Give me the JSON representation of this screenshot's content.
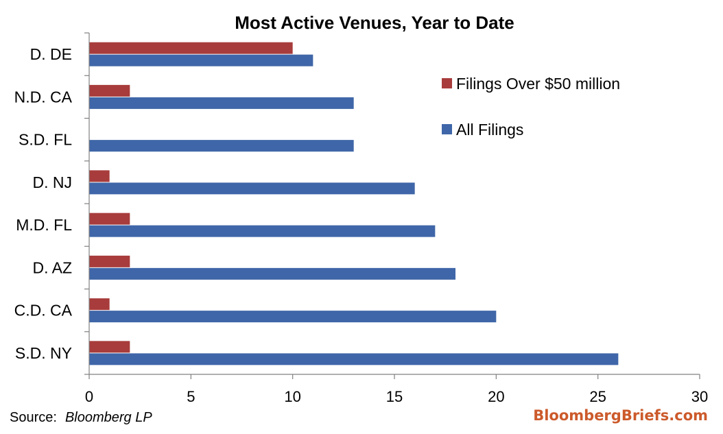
{
  "chart_data": {
    "type": "bar",
    "orientation": "horizontal",
    "title": "Most Active Venues, Year to Date",
    "categories": [
      "D. DE",
      "N.D. CA",
      "S.D. FL",
      "D. NJ",
      "M.D. FL",
      "D. AZ",
      "C.D. CA",
      "S.D. NY"
    ],
    "series": [
      {
        "name": "Filings Over $50 million",
        "color": "#a83c3c",
        "values": [
          10,
          2,
          0,
          1,
          2,
          2,
          1,
          2
        ]
      },
      {
        "name": "All Filings",
        "color": "#3f66a8",
        "values": [
          11,
          13,
          13,
          16,
          17,
          18,
          20,
          26
        ]
      }
    ],
    "xlim": [
      0,
      30
    ],
    "xticks": [
      "0",
      "5",
      "10",
      "15",
      "20",
      "25",
      "30"
    ],
    "grid": false,
    "legend": "top-right"
  },
  "footer": {
    "source_label": "Source:",
    "source_name": "Bloomberg LP",
    "brand": "BloombergBriefs.com",
    "brand_color": "#cc5a2b"
  }
}
